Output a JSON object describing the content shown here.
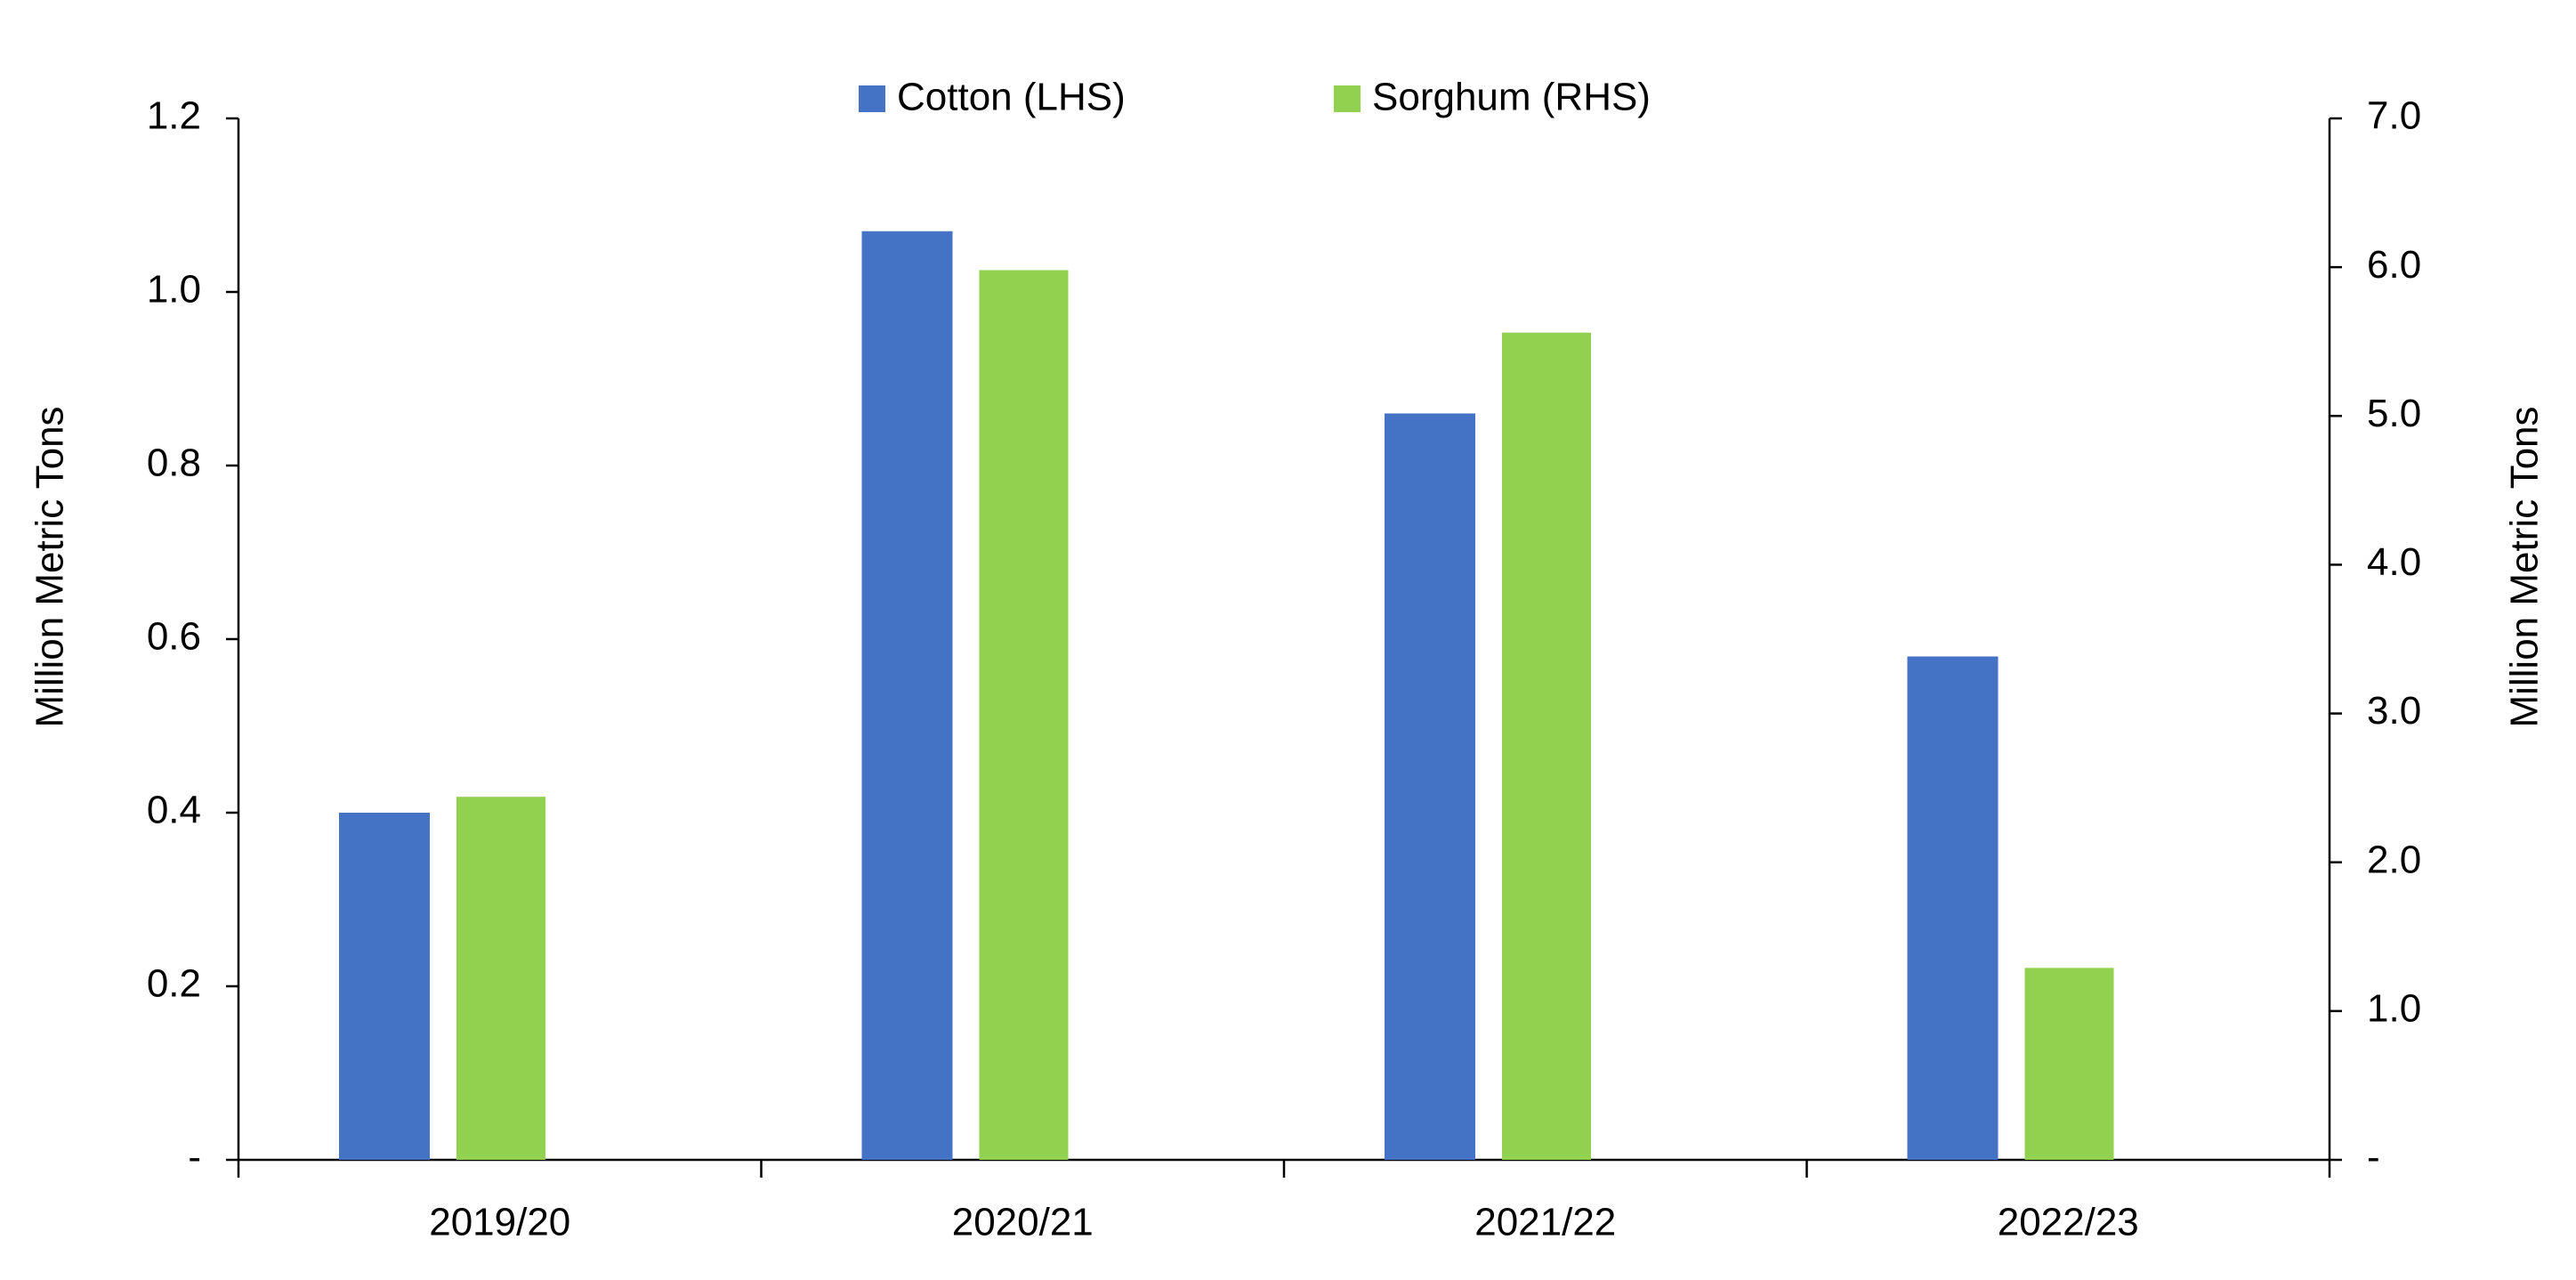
{
  "chart_data": {
    "type": "bar",
    "categories": [
      "2019/20",
      "2020/21",
      "2021/22",
      "2022/23"
    ],
    "series": [
      {
        "name": "Cotton (LHS)",
        "color": "#4472c4",
        "values": [
          0.4,
          1.07,
          0.86,
          0.58
        ]
      },
      {
        "name": "Sorghum (RHS)",
        "color": "#92d050",
        "axis": "y2",
        "values": [
          2.44,
          5.98,
          5.56,
          1.29
        ]
      }
    ],
    "ylabel": "Million Metric Tons",
    "y2label": "Million Metric Tons",
    "ylim": [
      0,
      1.2
    ],
    "yticks": [
      {
        "value": 0,
        "label": "-"
      },
      0.2,
      0.4,
      0.6,
      0.8,
      {
        "value": 1,
        "label": "1.0"
      },
      1.2
    ],
    "y2lim": [
      0,
      7
    ],
    "y2ticks": [
      {
        "value": 0,
        "label": "-"
      },
      {
        "value": 1,
        "label": "1.0"
      },
      {
        "value": 2,
        "label": "2.0"
      },
      {
        "value": 3,
        "label": "3.0"
      },
      {
        "value": 4,
        "label": "4.0"
      },
      {
        "value": 5,
        "label": "5.0"
      },
      {
        "value": 6,
        "label": "6.0"
      },
      {
        "value": 7,
        "label": "7.0"
      }
    ],
    "legend": "top",
    "grid": false
  }
}
